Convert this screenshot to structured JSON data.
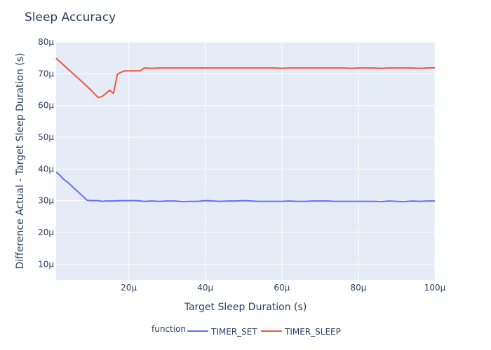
{
  "chart_data": {
    "type": "line",
    "title": "Sleep Accuracy",
    "xlabel": "Target Sleep Duration (s)",
    "ylabel": "Difference Actual - Target Sleep Duration (s)",
    "xlim": [
      1e-06,
      0.0001
    ],
    "ylim": [
      5e-06,
      8e-05
    ],
    "x_ticks": [
      2e-05,
      4e-05,
      6e-05,
      8e-05,
      0.0001
    ],
    "x_tick_labels": [
      "20μ",
      "40μ",
      "60μ",
      "80μ",
      "100μ"
    ],
    "y_ticks": [
      1e-05,
      2e-05,
      3e-05,
      4e-05,
      5e-05,
      6e-05,
      7e-05,
      8e-05
    ],
    "y_tick_labels": [
      "10μ",
      "20μ",
      "30μ",
      "40μ",
      "50μ",
      "60μ",
      "70μ",
      "80μ"
    ],
    "grid": true,
    "legend": {
      "title": "function",
      "placement": "bottom-center"
    },
    "plot_bg": "#e5ecf6",
    "series": [
      {
        "name": "TIMER_SET",
        "color": "#636efa",
        "x": [
          1e-06,
          2e-06,
          3e-06,
          4e-06,
          5e-06,
          6e-06,
          7e-06,
          8e-06,
          9e-06,
          1e-05,
          1.1e-05,
          1.2e-05,
          1.3e-05,
          1.4e-05,
          1.5e-05,
          1.6e-05,
          1.8e-05,
          2e-05,
          2.2e-05,
          2.4e-05,
          2.6e-05,
          2.8e-05,
          3e-05,
          3.2e-05,
          3.4e-05,
          3.6e-05,
          3.8e-05,
          4e-05,
          4.2e-05,
          4.4e-05,
          4.6e-05,
          4.8e-05,
          5e-05,
          5.2e-05,
          5.4e-05,
          5.6e-05,
          5.8e-05,
          6e-05,
          6.2e-05,
          6.4e-05,
          6.6e-05,
          6.8e-05,
          7e-05,
          7.2e-05,
          7.4e-05,
          7.6e-05,
          7.8e-05,
          8e-05,
          8.2e-05,
          8.4e-05,
          8.6e-05,
          8.8e-05,
          9e-05,
          9.2e-05,
          9.4e-05,
          9.6e-05,
          9.8e-05,
          0.0001
        ],
        "y": [
          3.9e-05,
          3.8e-05,
          3.67e-05,
          3.58e-05,
          3.47e-05,
          3.36e-05,
          3.25e-05,
          3.14e-05,
          3.02e-05,
          3e-05,
          3e-05,
          3e-05,
          2.98e-05,
          2.99e-05,
          2.99e-05,
          2.99e-05,
          3e-05,
          3e-05,
          3e-05,
          2.98e-05,
          2.99e-05,
          2.98e-05,
          2.99e-05,
          2.99e-05,
          2.97e-05,
          2.98e-05,
          2.98e-05,
          3e-05,
          2.99e-05,
          2.98e-05,
          2.99e-05,
          2.99e-05,
          3e-05,
          2.99e-05,
          2.98e-05,
          2.98e-05,
          2.98e-05,
          2.98e-05,
          2.99e-05,
          2.98e-05,
          2.98e-05,
          2.99e-05,
          2.99e-05,
          2.99e-05,
          2.98e-05,
          2.98e-05,
          2.98e-05,
          2.98e-05,
          2.98e-05,
          2.98e-05,
          2.97e-05,
          2.99e-05,
          2.98e-05,
          2.97e-05,
          2.99e-05,
          2.98e-05,
          2.99e-05,
          2.99e-05
        ]
      },
      {
        "name": "TIMER_SLEEP",
        "color": "#ef553b",
        "x": [
          1e-06,
          2e-06,
          3e-06,
          4e-06,
          5e-06,
          6e-06,
          7e-06,
          8e-06,
          9e-06,
          1e-05,
          1.1e-05,
          1.2e-05,
          1.3e-05,
          1.4e-05,
          1.5e-05,
          1.6e-05,
          1.7e-05,
          1.8e-05,
          1.9e-05,
          2e-05,
          2.2e-05,
          2.3e-05,
          2.4e-05,
          2.6e-05,
          2.8e-05,
          3e-05,
          3.2e-05,
          3.4e-05,
          3.6e-05,
          3.8e-05,
          4e-05,
          4.2e-05,
          4.4e-05,
          4.6e-05,
          4.8e-05,
          5e-05,
          5.2e-05,
          5.4e-05,
          5.6e-05,
          5.8e-05,
          6e-05,
          6.2e-05,
          6.4e-05,
          6.6e-05,
          6.8e-05,
          7e-05,
          7.2e-05,
          7.4e-05,
          7.6e-05,
          7.8e-05,
          8e-05,
          8.2e-05,
          8.4e-05,
          8.6e-05,
          8.8e-05,
          9e-05,
          9.2e-05,
          9.4e-05,
          9.6e-05,
          9.8e-05,
          0.0001
        ],
        "y": [
          7.49e-05,
          7.38e-05,
          7.27e-05,
          7.16e-05,
          7.05e-05,
          6.94e-05,
          6.83e-05,
          6.72e-05,
          6.61e-05,
          6.5e-05,
          6.37e-05,
          6.25e-05,
          6.28e-05,
          6.38e-05,
          6.48e-05,
          6.38e-05,
          6.98e-05,
          7.05e-05,
          7.09e-05,
          7.09e-05,
          7.09e-05,
          7.09e-05,
          7.18e-05,
          7.17e-05,
          7.18e-05,
          7.18e-05,
          7.18e-05,
          7.18e-05,
          7.18e-05,
          7.18e-05,
          7.18e-05,
          7.18e-05,
          7.18e-05,
          7.18e-05,
          7.18e-05,
          7.18e-05,
          7.18e-05,
          7.18e-05,
          7.18e-05,
          7.18e-05,
          7.17e-05,
          7.18e-05,
          7.18e-05,
          7.18e-05,
          7.18e-05,
          7.18e-05,
          7.18e-05,
          7.18e-05,
          7.18e-05,
          7.17e-05,
          7.18e-05,
          7.18e-05,
          7.18e-05,
          7.17e-05,
          7.18e-05,
          7.18e-05,
          7.18e-05,
          7.18e-05,
          7.17e-05,
          7.18e-05,
          7.19e-05
        ]
      }
    ]
  }
}
